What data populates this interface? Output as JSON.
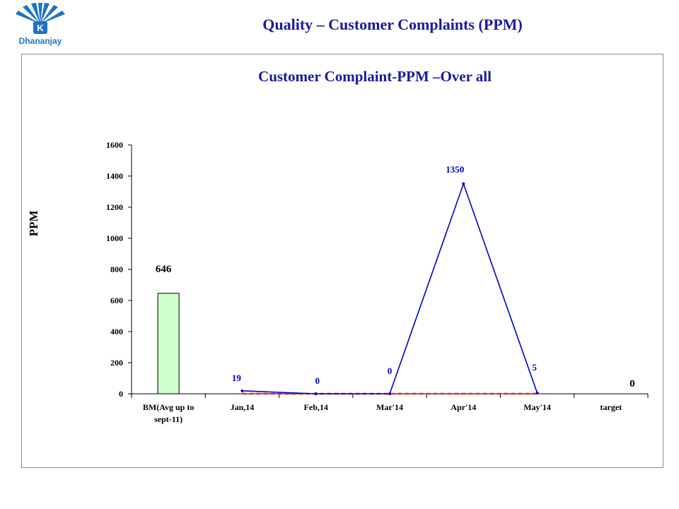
{
  "header": {
    "logo_name": "Dhananjay",
    "logo_letter": "K",
    "slide_title": "Quality – Customer Complaints (PPM)"
  },
  "colors": {
    "title": "#1a1aa0",
    "line": "#0000cc",
    "target_line": "#e8262a",
    "bar_fill": "#ccffcc",
    "logo": "#1e74c4"
  },
  "chart_data": {
    "type": "bar",
    "title": "Customer Complaint-PPM –Over all",
    "ylabel": "PPM",
    "xlabel": "",
    "ylim": [
      0,
      1600
    ],
    "yticks": [
      "0",
      "200",
      "400",
      "600",
      "800",
      "1000",
      "1200",
      "1400",
      "1600"
    ],
    "categories": [
      "BM(Avg up to sept-11)",
      "Jan,14",
      "Feb,14",
      "Mar'14",
      "Apr'14",
      "May'14",
      "target"
    ],
    "category_lines": [
      [
        "BM(Avg up to",
        "sept-11)"
      ],
      [
        "Jan,14"
      ],
      [
        "Feb,14"
      ],
      [
        "Mar'14"
      ],
      [
        "Apr'14"
      ],
      [
        "May'14"
      ],
      [
        "target"
      ]
    ],
    "bar": {
      "category": "BM(Avg up to sept-11)",
      "value": 646,
      "label": "646"
    },
    "line_series": {
      "categories": [
        "Jan,14",
        "Feb,14",
        "Mar'14",
        "Apr'14",
        "May'14"
      ],
      "values": [
        19,
        0,
        0,
        1350,
        5
      ],
      "labels": [
        "19",
        "0",
        "0",
        "1350",
        "5"
      ]
    },
    "target_series": {
      "categories": [
        "Jan,14",
        "Feb,14",
        "Mar'14",
        "Apr'14",
        "May'14"
      ],
      "values": [
        0,
        0,
        0,
        0,
        0
      ],
      "style": "dashed"
    },
    "target_value": {
      "category": "target",
      "value": 0,
      "label": "0"
    },
    "grid": false,
    "legend": "none"
  }
}
